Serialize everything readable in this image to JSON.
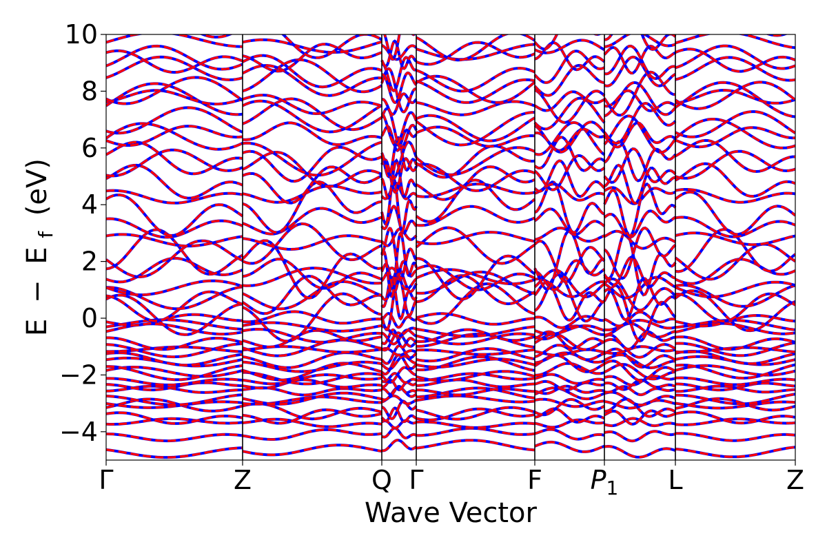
{
  "chart_data": {
    "type": "line",
    "xlabel": "Wave Vector",
    "ylabel": "E − E_f (eV)",
    "ylabel_parts": {
      "e1": "E",
      "minus": "−",
      "e2": "E",
      "sub": "f",
      "unit": "(eV)"
    },
    "ylim": [
      -5,
      10
    ],
    "xlim": [
      0,
      10
    ],
    "grid": false,
    "legend": "none",
    "y_ticks": [
      {
        "value": -4,
        "label": "−4"
      },
      {
        "value": -2,
        "label": "−2"
      },
      {
        "value": 0,
        "label": "0"
      },
      {
        "value": 2,
        "label": "2"
      },
      {
        "value": 4,
        "label": "4"
      },
      {
        "value": 6,
        "label": "6"
      },
      {
        "value": 8,
        "label": "8"
      },
      {
        "value": 10,
        "label": "10"
      }
    ],
    "k_points": [
      {
        "label": "Γ",
        "x": 0.0
      },
      {
        "label": "Z",
        "x": 1.98
      },
      {
        "label": "Q",
        "x": 4.0
      },
      {
        "label": "Γ",
        "x": 4.5
      },
      {
        "label": "F",
        "x": 6.22
      },
      {
        "label": "P",
        "sub": "1",
        "italic": true,
        "x": 7.23
      },
      {
        "label": "L",
        "x": 8.26
      },
      {
        "label": "Z",
        "x": 10.0
      }
    ],
    "series": [
      {
        "color": "#0000ff",
        "linestyle": "solid"
      },
      {
        "color": "#ff0000",
        "linestyle": "dashed"
      }
    ],
    "band_centers": [
      -4.6,
      -4.1,
      -3.7,
      -3.45,
      -3.2,
      -2.95,
      -2.75,
      -2.55,
      -2.35,
      -2.15,
      -1.95,
      -1.75,
      -1.55,
      -1.35,
      -1.15,
      -0.95,
      -0.75,
      -0.55,
      -0.35,
      -0.05,
      0.35,
      0.7,
      1.0,
      1.25,
      1.55,
      1.9,
      2.3,
      2.8,
      3.4,
      3.9,
      4.4,
      4.8,
      5.2,
      5.6,
      6.0,
      6.4,
      6.8,
      7.2,
      7.6,
      8.0,
      8.4,
      8.8,
      9.2,
      9.6,
      10.0
    ]
  }
}
